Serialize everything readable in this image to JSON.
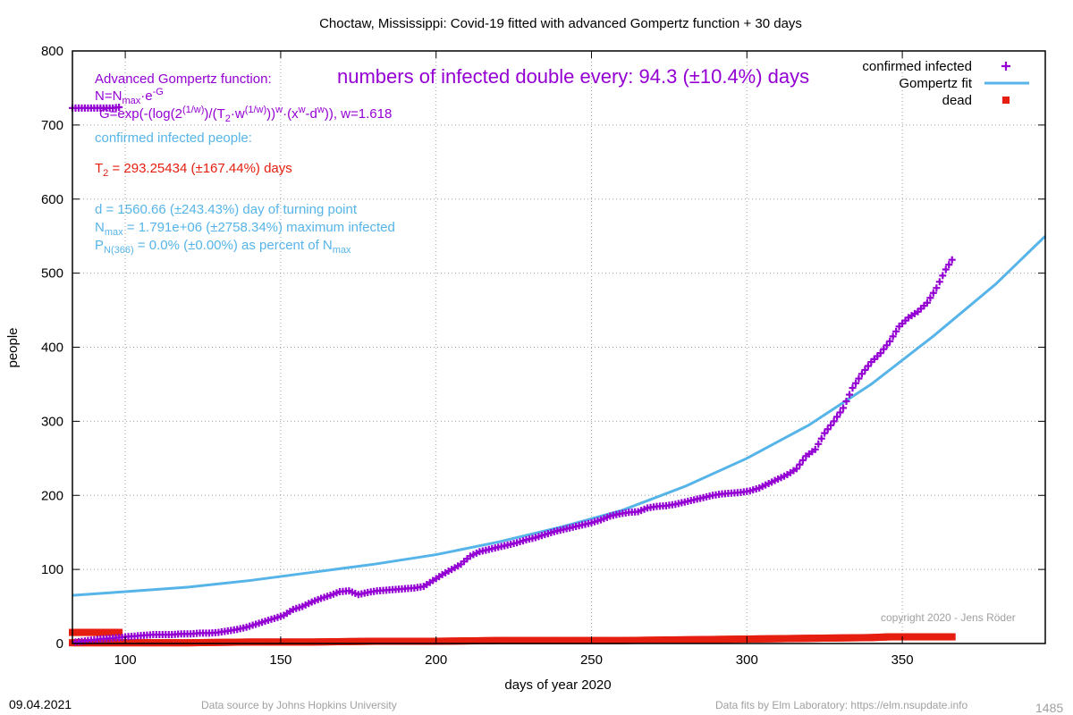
{
  "chart_data": {
    "type": "scatter",
    "title": "Choctaw,  Mississippi: Covid-19 fitted with advanced Gompertz function + 30 days",
    "xlabel": "days of year 2020",
    "ylabel": "people",
    "xlim": [
      83,
      396
    ],
    "ylim": [
      0,
      800
    ],
    "x_ticks": [
      100,
      150,
      200,
      250,
      300,
      350
    ],
    "y_ticks": [
      0,
      100,
      200,
      300,
      400,
      500,
      600,
      700,
      800
    ],
    "grid": true,
    "legend_position": "top-right",
    "series": [
      {
        "name": "confirmed infected",
        "style": "points-plus",
        "color": "#9400d3",
        "points": [
          [
            83,
            723
          ],
          [
            84,
            723
          ],
          [
            86,
            723
          ],
          [
            88,
            723
          ],
          [
            90,
            723
          ],
          [
            92,
            723
          ],
          [
            94,
            723
          ],
          [
            96,
            723
          ],
          [
            98,
            724
          ],
          [
            84,
            2
          ],
          [
            86,
            3
          ],
          [
            88,
            4
          ],
          [
            90,
            5
          ],
          [
            92,
            6
          ],
          [
            95,
            7
          ],
          [
            98,
            8
          ],
          [
            100,
            9
          ],
          [
            103,
            10
          ],
          [
            106,
            11
          ],
          [
            109,
            12
          ],
          [
            112,
            12
          ],
          [
            115,
            12
          ],
          [
            118,
            13
          ],
          [
            121,
            13
          ],
          [
            124,
            14
          ],
          [
            127,
            14
          ],
          [
            130,
            15
          ],
          [
            133,
            17
          ],
          [
            136,
            19
          ],
          [
            139,
            22
          ],
          [
            142,
            26
          ],
          [
            145,
            30
          ],
          [
            148,
            34
          ],
          [
            151,
            38
          ],
          [
            154,
            46
          ],
          [
            157,
            50
          ],
          [
            160,
            56
          ],
          [
            163,
            61
          ],
          [
            166,
            65
          ],
          [
            169,
            70
          ],
          [
            172,
            71
          ],
          [
            175,
            66
          ],
          [
            178,
            69
          ],
          [
            181,
            71
          ],
          [
            184,
            72
          ],
          [
            187,
            73
          ],
          [
            190,
            74
          ],
          [
            193,
            75
          ],
          [
            196,
            77
          ],
          [
            199,
            85
          ],
          [
            202,
            93
          ],
          [
            205,
            100
          ],
          [
            208,
            107
          ],
          [
            211,
            118
          ],
          [
            214,
            124
          ],
          [
            217,
            127
          ],
          [
            220,
            130
          ],
          [
            223,
            133
          ],
          [
            226,
            136
          ],
          [
            229,
            140
          ],
          [
            232,
            143
          ],
          [
            235,
            147
          ],
          [
            238,
            151
          ],
          [
            241,
            154
          ],
          [
            244,
            157
          ],
          [
            247,
            160
          ],
          [
            250,
            163
          ],
          [
            253,
            167
          ],
          [
            256,
            172
          ],
          [
            259,
            175
          ],
          [
            262,
            177
          ],
          [
            265,
            178
          ],
          [
            268,
            183
          ],
          [
            271,
            185
          ],
          [
            274,
            186
          ],
          [
            277,
            188
          ],
          [
            280,
            191
          ],
          [
            283,
            194
          ],
          [
            286,
            197
          ],
          [
            289,
            200
          ],
          [
            292,
            202
          ],
          [
            295,
            203
          ],
          [
            298,
            204
          ],
          [
            301,
            206
          ],
          [
            304,
            210
          ],
          [
            307,
            216
          ],
          [
            310,
            222
          ],
          [
            313,
            228
          ],
          [
            316,
            236
          ],
          [
            319,
            253
          ],
          [
            322,
            262
          ],
          [
            325,
            284
          ],
          [
            328,
            300
          ],
          [
            331,
            318
          ],
          [
            334,
            345
          ],
          [
            337,
            364
          ],
          [
            340,
            380
          ],
          [
            343,
            392
          ],
          [
            346,
            408
          ],
          [
            349,
            428
          ],
          [
            352,
            440
          ],
          [
            355,
            448
          ],
          [
            358,
            460
          ],
          [
            361,
            480
          ],
          [
            364,
            505
          ],
          [
            366,
            518
          ]
        ]
      },
      {
        "name": "Gompertz fit",
        "style": "line",
        "color": "#56b4e9",
        "points": [
          [
            83,
            65
          ],
          [
            100,
            70
          ],
          [
            120,
            76
          ],
          [
            140,
            85
          ],
          [
            160,
            96
          ],
          [
            180,
            107
          ],
          [
            200,
            120
          ],
          [
            220,
            137
          ],
          [
            240,
            157
          ],
          [
            260,
            180
          ],
          [
            280,
            212
          ],
          [
            300,
            250
          ],
          [
            320,
            295
          ],
          [
            340,
            350
          ],
          [
            360,
            415
          ],
          [
            380,
            485
          ],
          [
            396,
            550
          ]
        ]
      },
      {
        "name": "dead",
        "style": "points-square",
        "color": "#e51e10",
        "points": [
          [
            83,
            15
          ],
          [
            98,
            15
          ],
          [
            83,
            1
          ],
          [
            100,
            1
          ],
          [
            120,
            1
          ],
          [
            140,
            2
          ],
          [
            160,
            2
          ],
          [
            180,
            3
          ],
          [
            200,
            3
          ],
          [
            220,
            4
          ],
          [
            240,
            4
          ],
          [
            260,
            4
          ],
          [
            280,
            5
          ],
          [
            300,
            6
          ],
          [
            320,
            7
          ],
          [
            340,
            8
          ],
          [
            346,
            9
          ],
          [
            366,
            9
          ]
        ]
      }
    ]
  },
  "annotations": {
    "formula_title": "Advanced Gompertz function:",
    "formula_n": "N=N",
    "formula_n_sub": "max",
    "formula_n_rest": "·e",
    "formula_n_sup": "-G",
    "formula_g": "G=exp(-(log(2",
    "formula_g_sup1": "(1/w)",
    "formula_g_mid1": ")/(T",
    "formula_g_sub2": "2",
    "formula_g_mid2": "·w",
    "formula_g_sup2": "(1/w)",
    "formula_g_mid3": "))",
    "formula_g_sup3": "w",
    "formula_g_mid4": "·(x",
    "formula_g_sup4": "w",
    "formula_g_mid5": "-d",
    "formula_g_sup5": "w",
    "formula_g_end": ")), w=1.618",
    "headline": "numbers of infected double every: 94.3 (±10.4%) days",
    "confirmed_label": "confirmed infected people:",
    "t2_prefix": "T",
    "t2_sub": "2",
    "t2_rest": " = 293.25434 (±167.44%) days",
    "d_line": "d = 1560.66 (±243.43%) day of turning point",
    "nmax_prefix": "N",
    "nmax_sub": "max",
    "nmax_rest": " = 1.791e+06 (±2758.34%) maximum infected",
    "p_prefix": "P",
    "p_sub": "N(366)",
    "p_mid": " = 0.0% (±0.00%) as percent of N",
    "p_sub2": "max",
    "copyright": "copyright 2020 - Jens Röder"
  },
  "footer": {
    "date": "09.04.2021",
    "source": "Data source by Johns Hopkins University",
    "fits": "Data fits by Elm Laboratory: https://elm.nsupdate.info",
    "counter": "1485"
  }
}
